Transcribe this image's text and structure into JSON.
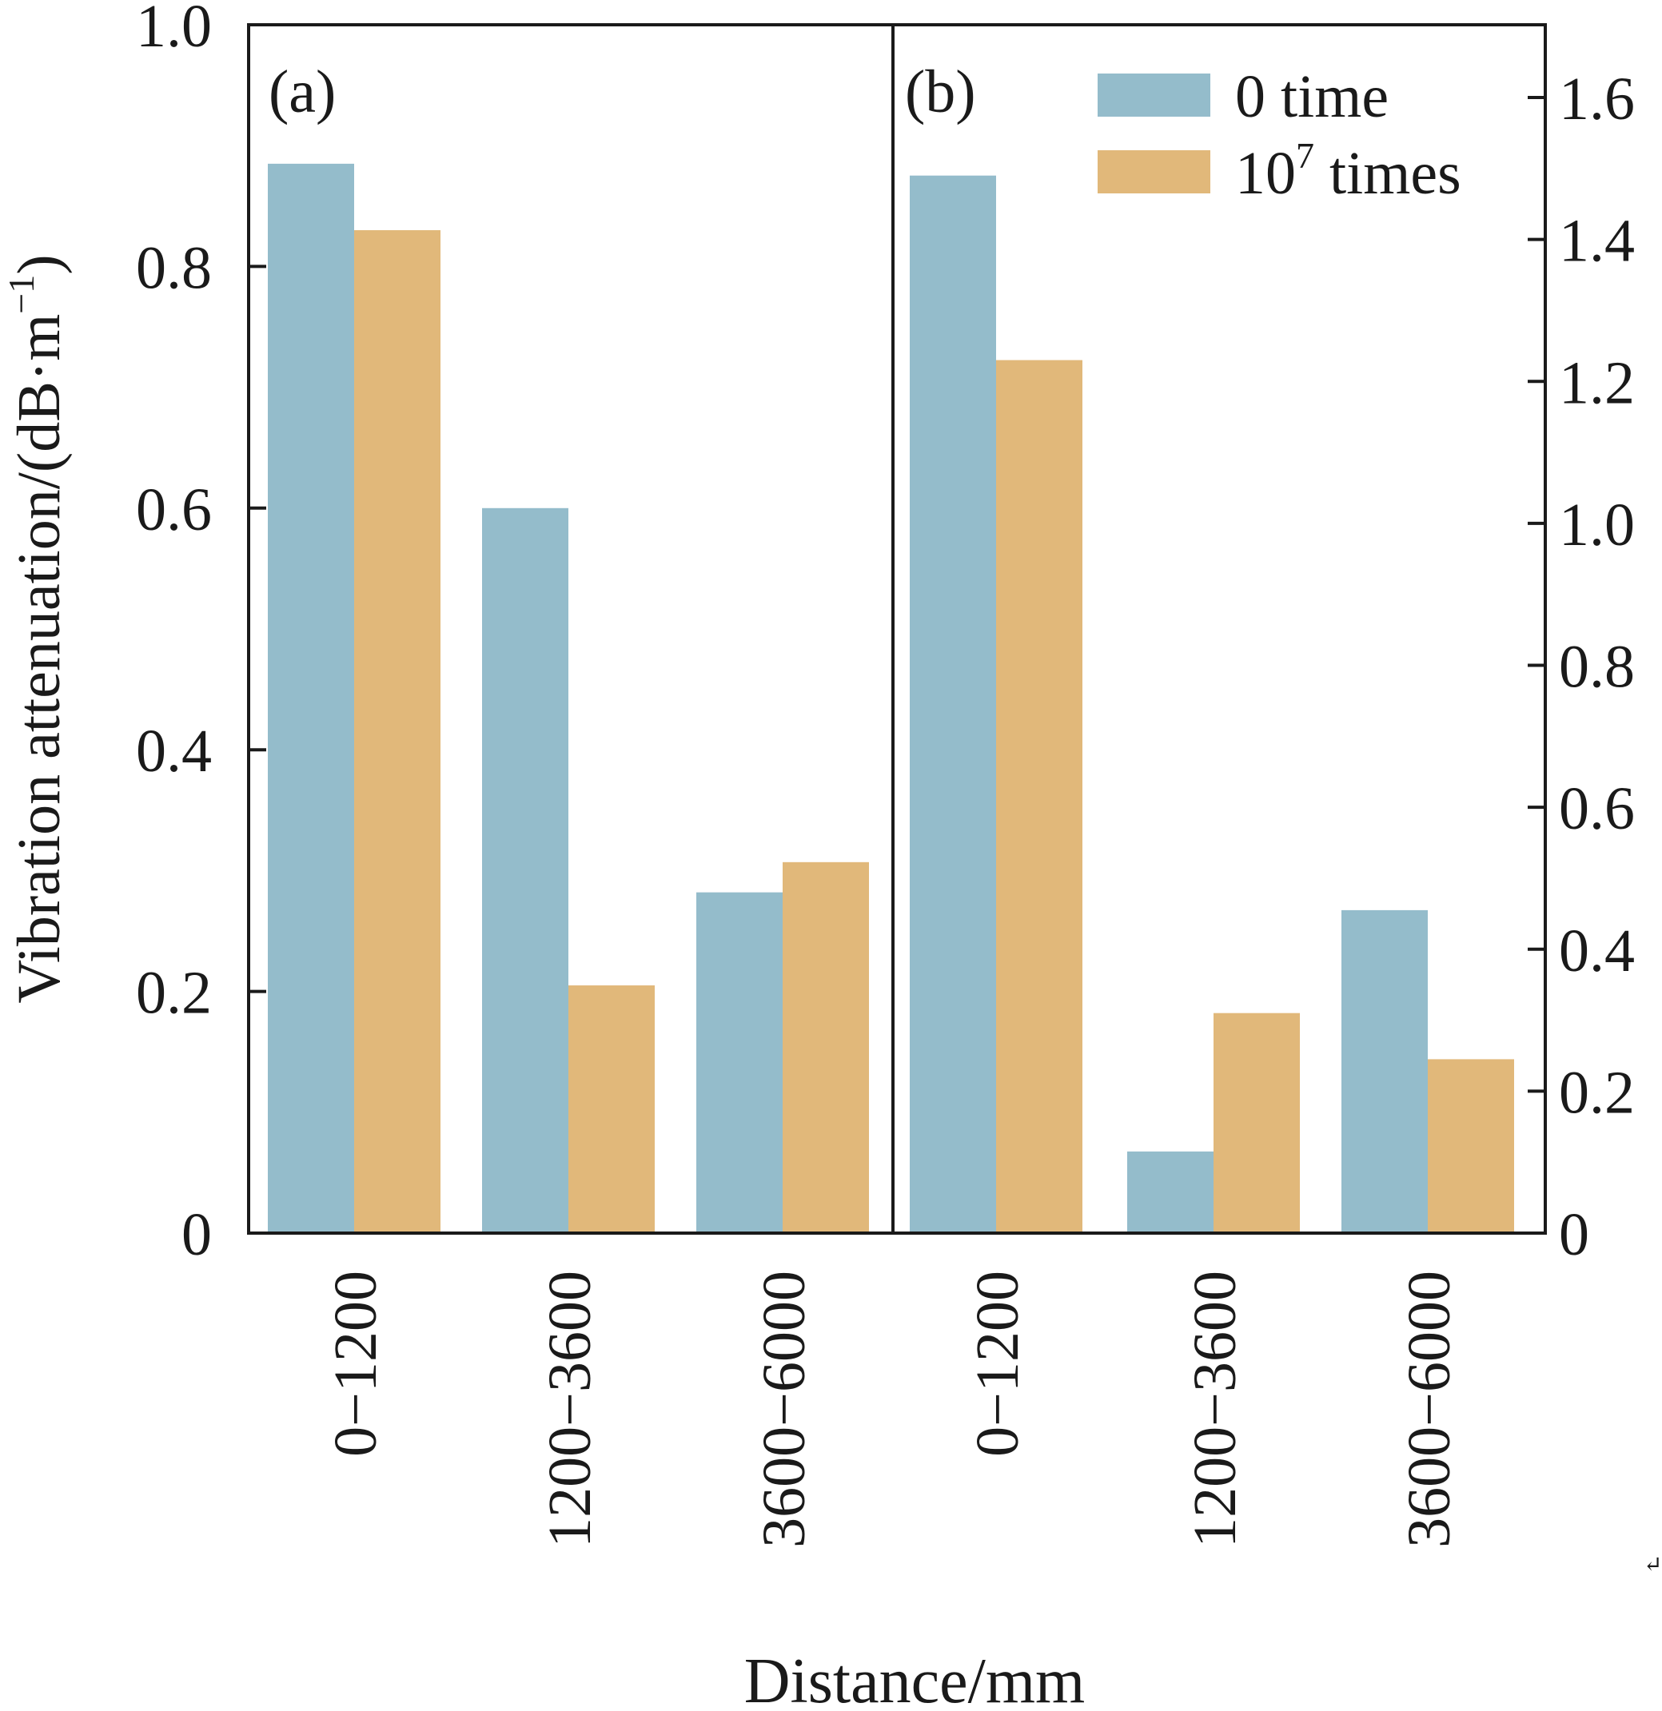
{
  "chart_data": {
    "type": "bar",
    "ylabel": "Vibration attenuation/(dB·m",
    "ylabel_sup": "−1",
    "ylabel_close": ")",
    "xlabel": "Distance/mm",
    "series_names": [
      "0 time",
      "10",
      "7",
      " times"
    ],
    "legend": [
      {
        "label_main": "0 time",
        "label_sup": "",
        "label_tail": "",
        "color": "#94bccb"
      },
      {
        "label_main": "10",
        "label_sup": "7",
        "label_tail": " times",
        "color": "#e1b87a"
      }
    ],
    "panels": [
      {
        "tag": "(a)",
        "axis": "left",
        "ylim": [
          0,
          1.0
        ],
        "yticks": [
          0,
          0.2,
          0.4,
          0.6,
          0.8,
          1.0
        ],
        "ytick_labels": [
          "0",
          "0.2",
          "0.4",
          "0.6",
          "0.8",
          "1.0"
        ],
        "categories": [
          "0−1200",
          "1200−3600",
          "3600−6000"
        ],
        "series": [
          {
            "name": "0 time",
            "values": [
              0.885,
              0.6,
              0.282
            ]
          },
          {
            "name": "10^7 times",
            "values": [
              0.83,
              0.205,
              0.307
            ]
          }
        ]
      },
      {
        "tag": "(b)",
        "axis": "right",
        "ylim": [
          0,
          1.7
        ],
        "yticks": [
          0,
          0.2,
          0.4,
          0.6,
          0.8,
          1.0,
          1.2,
          1.4,
          1.6
        ],
        "ytick_labels": [
          "0",
          "0.2",
          "0.4",
          "0.6",
          "0.8",
          "1.0",
          "1.2",
          "1.4",
          "1.6"
        ],
        "categories": [
          "0−1200",
          "1200−3600",
          "3600−6000"
        ],
        "series": [
          {
            "name": "0 time",
            "values": [
              1.49,
              0.115,
              0.455
            ]
          },
          {
            "name": "10^7 times",
            "values": [
              1.23,
              0.31,
              0.245
            ]
          }
        ]
      }
    ]
  }
}
